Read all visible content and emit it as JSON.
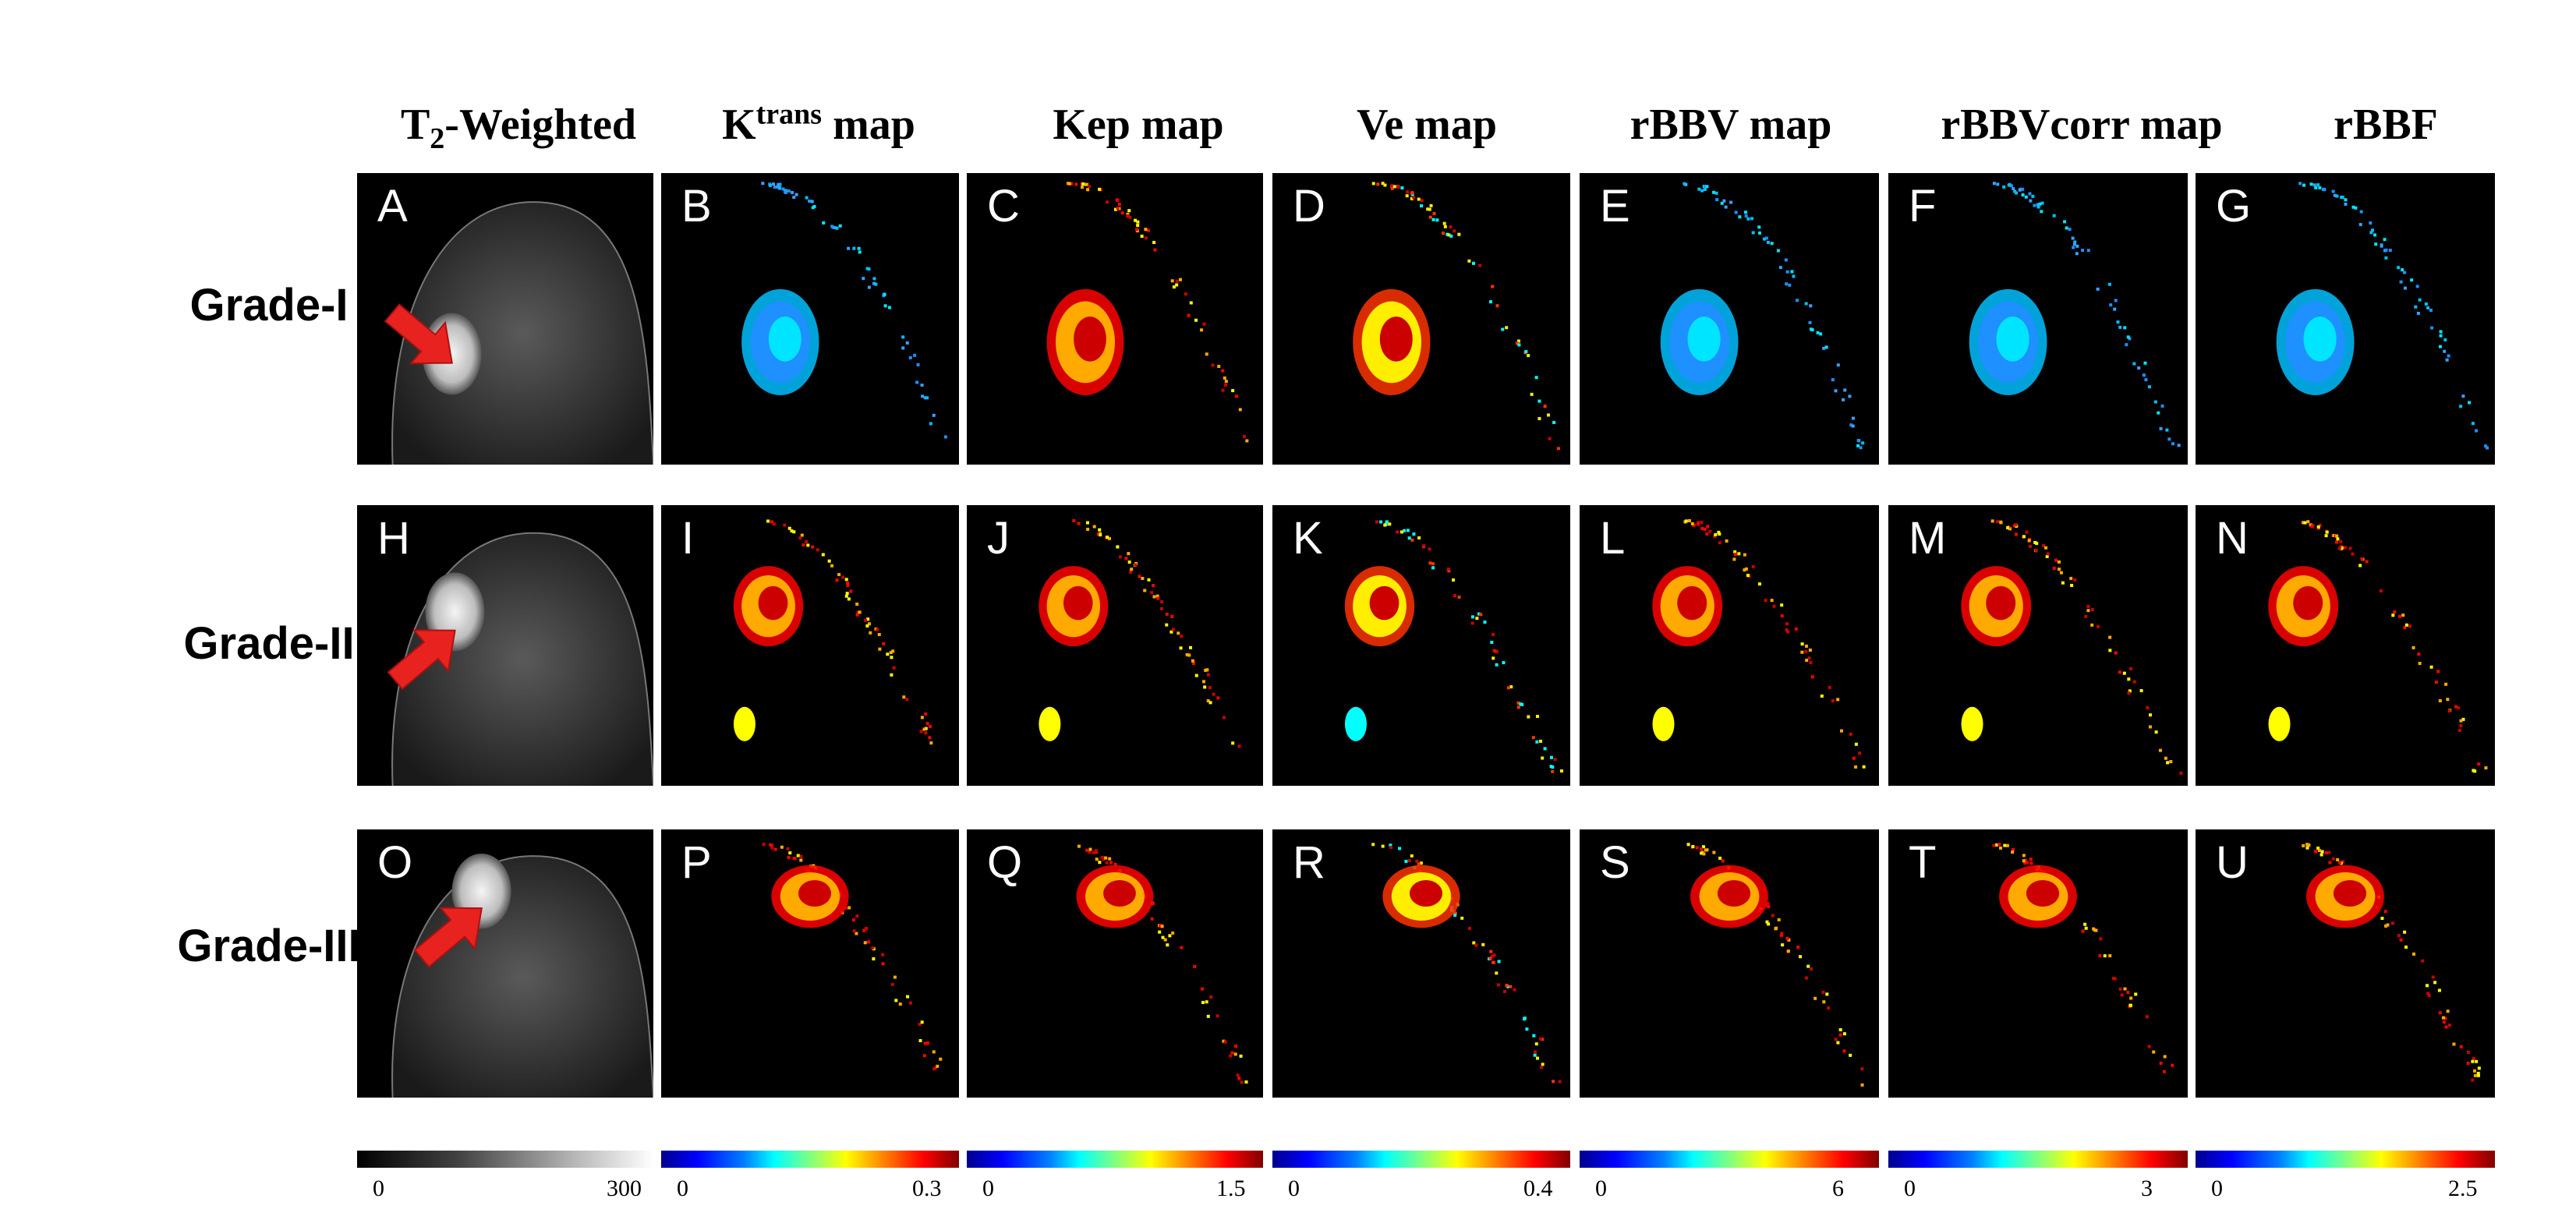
{
  "figure": {
    "columns": [
      {
        "base": "T",
        "sub": "2",
        "rest": "-Weighted"
      },
      {
        "base": "K",
        "sup": "trans",
        "rest": " map"
      },
      {
        "base": "Kep map"
      },
      {
        "base": "Ve map"
      },
      {
        "base": "rBBV map"
      },
      {
        "base": "rBBVcorr map"
      },
      {
        "base": "rBBF"
      }
    ],
    "rows": [
      {
        "label": "Grade-I",
        "panels": [
          "A",
          "B",
          "C",
          "D",
          "E",
          "F",
          "G"
        ]
      },
      {
        "label": "Grade-II",
        "panels": [
          "H",
          "I",
          "J",
          "K",
          "L",
          "M",
          "N"
        ]
      },
      {
        "label": "Grade-III",
        "panels": [
          "O",
          "P",
          "Q",
          "R",
          "S",
          "T",
          "U"
        ]
      }
    ],
    "colorbars": [
      {
        "min": "0",
        "max": "300",
        "colormap": "gray"
      },
      {
        "min": "0",
        "max": "0.3",
        "colormap": "jet"
      },
      {
        "min": "0",
        "max": "1.5",
        "colormap": "jet"
      },
      {
        "min": "0",
        "max": "0.4",
        "colormap": "jet"
      },
      {
        "min": "0",
        "max": "6",
        "colormap": "jet"
      },
      {
        "min": "0",
        "max": "3",
        "colormap": "jet"
      },
      {
        "min": "0",
        "max": "2.5",
        "colormap": "jet"
      }
    ],
    "arrow_color": "#e8231f",
    "panel_background": "#000000"
  }
}
